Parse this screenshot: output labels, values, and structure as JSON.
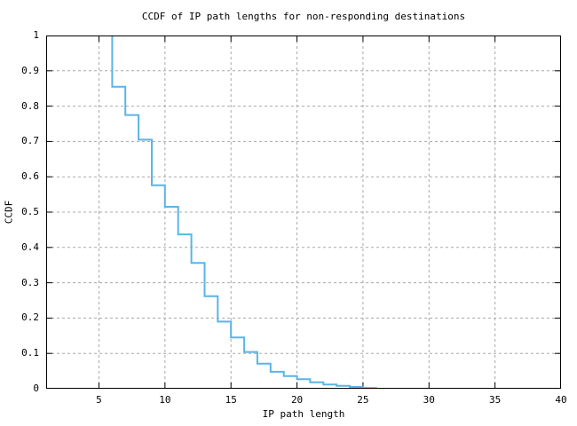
{
  "chart_data": {
    "type": "line",
    "style": "steps-post",
    "title": "CCDF of IP path lengths for non-responding destinations",
    "xlabel": "IP path length",
    "ylabel": "CCDF",
    "xlim": [
      1,
      40
    ],
    "ylim": [
      0,
      1
    ],
    "grid": true,
    "legend": "none",
    "x": [
      5,
      6,
      7,
      8,
      9,
      10,
      11,
      12,
      13,
      14,
      15,
      16,
      17,
      18,
      19,
      20,
      21,
      22,
      23,
      24,
      25,
      26
    ],
    "y": [
      1.0,
      0.855,
      0.775,
      0.705,
      0.576,
      0.515,
      0.437,
      0.356,
      0.262,
      0.19,
      0.145,
      0.104,
      0.071,
      0.048,
      0.036,
      0.027,
      0.018,
      0.012,
      0.008,
      0.005,
      0.002,
      0.0
    ],
    "xticks": {
      "values": [
        5,
        10,
        15,
        20,
        25,
        30,
        35,
        40
      ],
      "labels": [
        "5",
        "10",
        "15",
        "20",
        "25",
        "30",
        "35",
        "40"
      ]
    },
    "yticks": {
      "values": [
        0,
        0.1,
        0.2,
        0.3,
        0.4,
        0.5,
        0.6,
        0.7,
        0.8,
        0.9,
        1
      ],
      "labels": [
        "0",
        "0.1",
        "0.2",
        "0.3",
        "0.4",
        "0.5",
        "0.6",
        "0.7",
        "0.8",
        "0.9",
        "1"
      ]
    },
    "colors": {
      "line": "#5ab4e6",
      "grid": "#a8a8a8",
      "axis": "#000000",
      "background": "#ffffff",
      "text": "#000000"
    }
  }
}
